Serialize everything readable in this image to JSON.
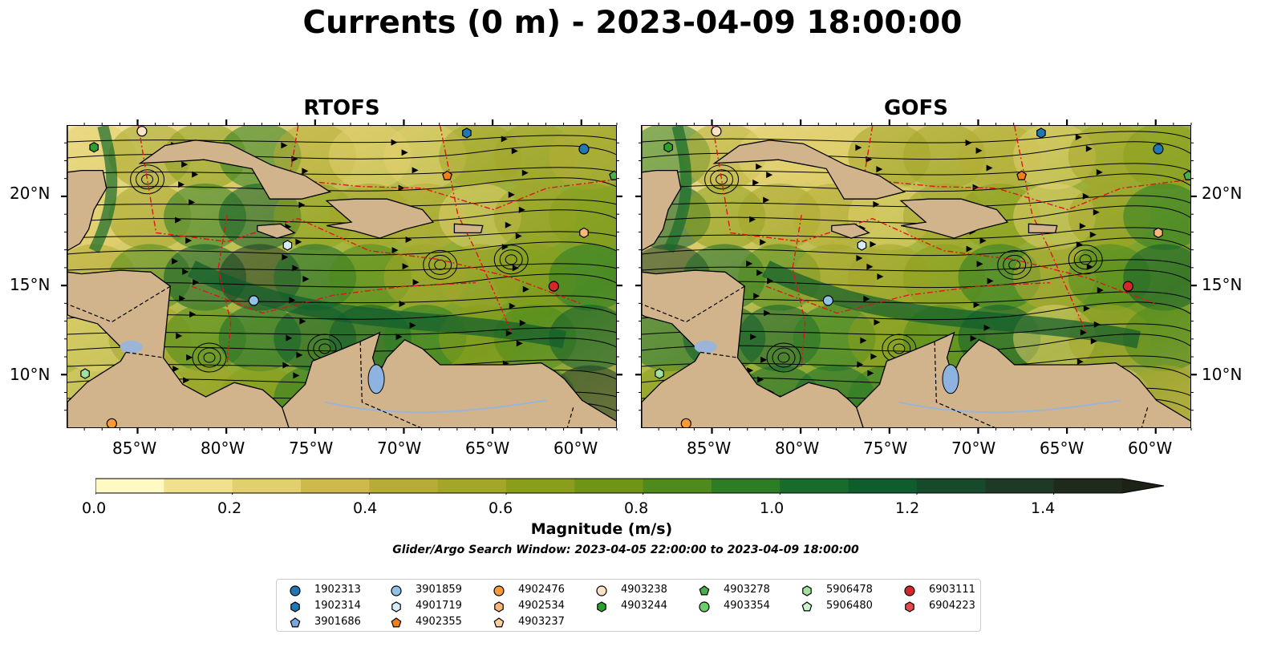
{
  "title": "Currents (0 m) - 2023-04-09 18:00:00",
  "panels": [
    {
      "title": "RTOFS"
    },
    {
      "title": "GOFS"
    }
  ],
  "map": {
    "lon_range": [
      -89,
      -58
    ],
    "lat_range": [
      7,
      24
    ],
    "lon_ticks": [
      "85°W",
      "80°W",
      "75°W",
      "70°W",
      "65°W",
      "60°W"
    ],
    "lat_ticks": [
      "20°N",
      "15°N",
      "10°N"
    ],
    "land_color": "#d2b48c",
    "current_colormap": [
      "#fff9c4",
      "#f1e08e",
      "#e2cf6d",
      "#cfb84c",
      "#b7ad36",
      "#a4a62a",
      "#8a9e1c",
      "#6f9418",
      "#4e8a1c",
      "#2e7d25",
      "#176b2b",
      "#0f5c2c",
      "#174a2a",
      "#1e3a24",
      "#1f2a1a"
    ]
  },
  "colorbar": {
    "label": "Magnitude (m/s)",
    "ticks": [
      "0.0",
      "0.2",
      "0.4",
      "0.6",
      "0.8",
      "1.0",
      "1.2",
      "1.4"
    ],
    "min": 0.0,
    "max": 1.5,
    "extend": "max"
  },
  "search_window": "Glider/Argo Search Window: 2023-04-05 22:00:00 to 2023-04-09 18:00:00",
  "legend": [
    {
      "id": "1902313",
      "marker": "circle",
      "color": "#1f77b4"
    },
    {
      "id": "1902314",
      "marker": "hexagon",
      "color": "#1f77b4"
    },
    {
      "id": "3901686",
      "marker": "pentagon",
      "color": "#7aa8dc"
    },
    {
      "id": "3901859",
      "marker": "circle",
      "color": "#8fc3ea"
    },
    {
      "id": "4901719",
      "marker": "hexagon",
      "color": "#d6ecfa"
    },
    {
      "id": "4902355",
      "marker": "pentagon",
      "color": "#f57f17"
    },
    {
      "id": "4902476",
      "marker": "circle",
      "color": "#f79a3b"
    },
    {
      "id": "4902534",
      "marker": "hexagon",
      "color": "#fbb77a"
    },
    {
      "id": "4903237",
      "marker": "pentagon",
      "color": "#fccf9e"
    },
    {
      "id": "4903238",
      "marker": "circle",
      "color": "#fde3c6"
    },
    {
      "id": "4903244",
      "marker": "hexagon",
      "color": "#2ca02c"
    },
    {
      "id": "4903278",
      "marker": "pentagon",
      "color": "#4aae4a"
    },
    {
      "id": "4903354",
      "marker": "circle",
      "color": "#6ccd6c"
    },
    {
      "id": "5906478",
      "marker": "hexagon",
      "color": "#9ee29e"
    },
    {
      "id": "5906480",
      "marker": "pentagon",
      "color": "#cdf5cd"
    },
    {
      "id": "6903111",
      "marker": "circle",
      "color": "#d62728"
    },
    {
      "id": "6904223",
      "marker": "hexagon",
      "color": "#e8484a"
    }
  ],
  "float_positions": [
    {
      "id": "4903244",
      "lon": -87.5,
      "lat": 22.8
    },
    {
      "id": "4903238",
      "lon": -84.8,
      "lat": 23.7
    },
    {
      "id": "1902314",
      "lon": -66.5,
      "lat": 23.6
    },
    {
      "id": "4902355",
      "lon": -67.6,
      "lat": 21.2
    },
    {
      "id": "1902313",
      "lon": -59.9,
      "lat": 22.7
    },
    {
      "id": "4903278",
      "lon": -58.2,
      "lat": 21.2
    },
    {
      "id": "4901719",
      "lon": -76.6,
      "lat": 17.3
    },
    {
      "id": "3901859",
      "lon": -78.5,
      "lat": 14.2
    },
    {
      "id": "4902534",
      "lon": -59.9,
      "lat": 18.0
    },
    {
      "id": "6903111",
      "lon": -61.6,
      "lat": 15.0
    },
    {
      "id": "5906478",
      "lon": -88.0,
      "lat": 10.1
    },
    {
      "id": "4902476",
      "lon": -86.5,
      "lat": 7.3
    }
  ]
}
